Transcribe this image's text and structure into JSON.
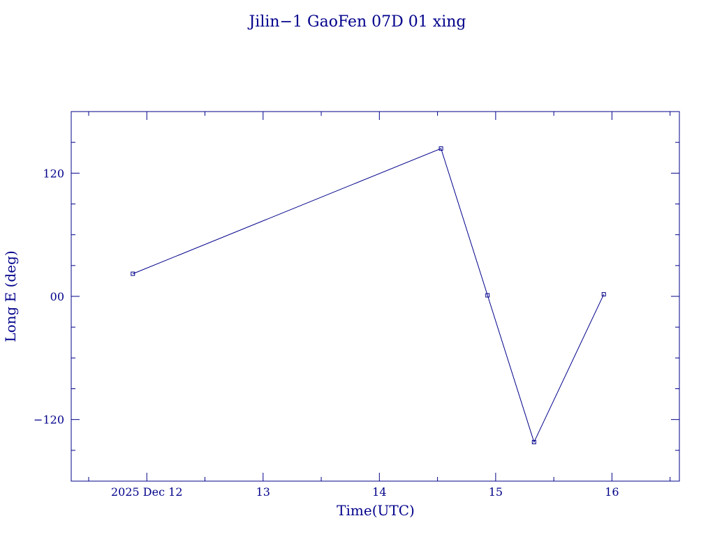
{
  "chart_data": {
    "type": "line",
    "title": "Jilin−1 GaoFen 07D 01 xing",
    "xlabel": "Time(UTC)",
    "ylabel": "Long E (deg)",
    "x_tick_labels": [
      "2025 Dec 12",
      "13",
      "14",
      "15",
      "16"
    ],
    "x_tick_values": [
      12,
      13,
      14,
      15,
      16
    ],
    "xlim": [
      11.35,
      16.58
    ],
    "y_tick_labels": [
      "−120",
      "00",
      "120"
    ],
    "y_tick_values": [
      -120,
      0,
      120
    ],
    "ylim": [
      -180,
      180
    ],
    "grid": false,
    "series": [
      {
        "x": [
          11.88,
          14.53,
          14.93,
          15.33,
          15.93
        ],
        "y": [
          22,
          144,
          1,
          -142,
          2
        ]
      }
    ],
    "colors": {
      "ink": "#00008b"
    }
  }
}
